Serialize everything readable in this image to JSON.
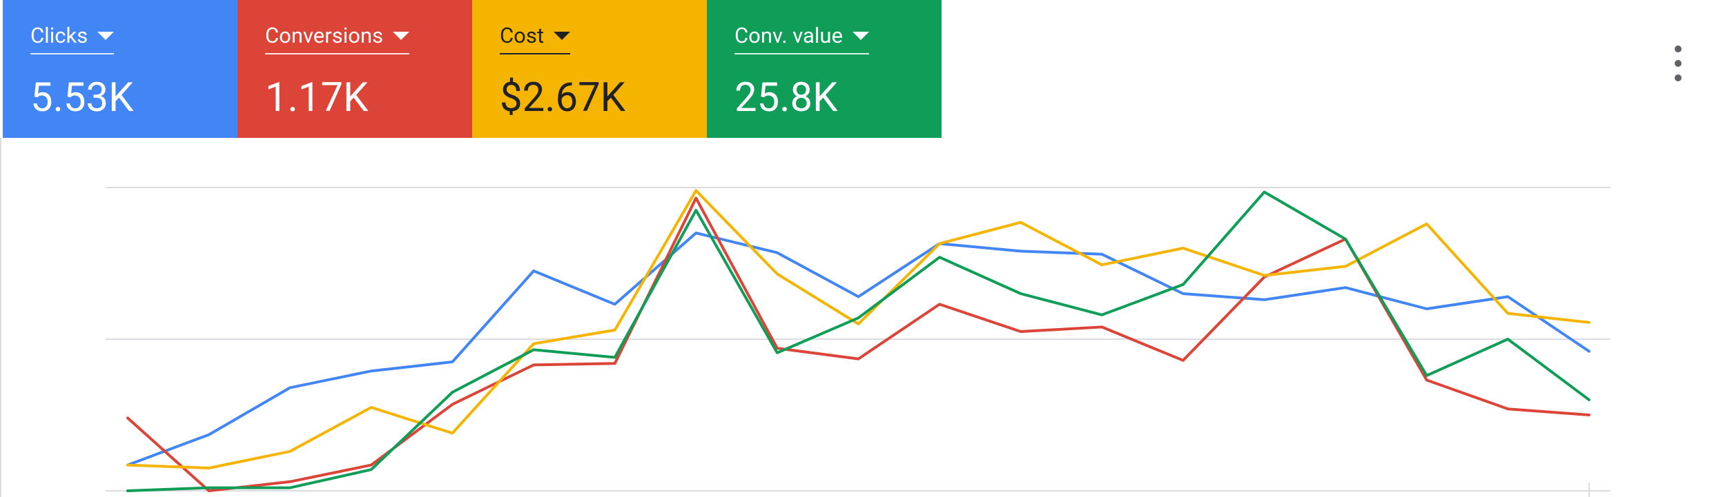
{
  "metrics": [
    {
      "label": "Clicks",
      "value": "5.53K",
      "color": "#4285f4",
      "dark_text": false
    },
    {
      "label": "Conversions",
      "value": "1.17K",
      "color": "#db4437",
      "dark_text": false
    },
    {
      "label": "Cost",
      "value": "$2.67K",
      "color": "#f4b400",
      "dark_text": true
    },
    {
      "label": "Conv. value",
      "value": "25.8K",
      "color": "#0f9d58",
      "dark_text": false
    }
  ],
  "menu": {
    "icon": "more-vert-icon"
  },
  "chart_data": {
    "type": "line",
    "x": [
      1,
      2,
      3,
      4,
      5,
      6,
      7,
      8,
      9,
      10,
      11,
      12,
      13,
      14,
      15,
      16,
      17,
      18,
      19
    ],
    "ylim": [
      0,
      2
    ],
    "grid": true,
    "y_gridlines": [
      0,
      1,
      2
    ],
    "series": [
      {
        "color": "#4285f4",
        "values": [
          0.17,
          0.37,
          0.68,
          0.79,
          0.85,
          1.45,
          1.23,
          1.7,
          1.57,
          1.28,
          1.63,
          1.58,
          1.56,
          1.3,
          1.26,
          1.34,
          1.2,
          1.28,
          0.92
        ]
      },
      {
        "color": "#db4437",
        "values": [
          0.48,
          0.0,
          0.06,
          0.17,
          0.57,
          0.83,
          0.84,
          1.93,
          0.94,
          0.87,
          1.23,
          1.05,
          1.08,
          0.86,
          1.41,
          1.66,
          0.73,
          0.54,
          0.5
        ]
      },
      {
        "color": "#f4b400",
        "values": [
          0.17,
          0.15,
          0.26,
          0.55,
          0.38,
          0.97,
          1.06,
          1.98,
          1.43,
          1.1,
          1.63,
          1.77,
          1.49,
          1.6,
          1.42,
          1.48,
          1.76,
          1.17,
          1.11
        ]
      },
      {
        "color": "#0f9d58",
        "values": [
          0.0,
          0.02,
          0.02,
          0.14,
          0.65,
          0.93,
          0.88,
          1.85,
          0.91,
          1.14,
          1.54,
          1.3,
          1.16,
          1.36,
          1.97,
          1.66,
          0.76,
          1.0,
          0.6
        ]
      }
    ]
  }
}
